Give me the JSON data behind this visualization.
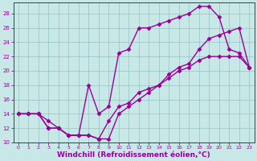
{
  "bg_color": "#c8e8e8",
  "grid_color": "#a0c8c8",
  "line_color": "#990099",
  "marker": "D",
  "markersize": 2.5,
  "linewidth": 1.0,
  "xlabel": "Windchill (Refroidissement éolien,°C)",
  "xlabel_fontsize": 6.5,
  "xlim_min": -0.5,
  "xlim_max": 23.5,
  "ylim_min": 10,
  "ylim_max": 29.5,
  "yticks": [
    10,
    12,
    14,
    16,
    18,
    20,
    22,
    24,
    26,
    28
  ],
  "xticks": [
    0,
    1,
    2,
    3,
    4,
    5,
    6,
    7,
    8,
    9,
    10,
    11,
    12,
    13,
    14,
    15,
    16,
    17,
    18,
    19,
    20,
    21,
    22,
    23
  ],
  "line1_x": [
    0,
    1,
    2,
    3,
    4,
    5,
    6,
    7,
    8,
    9,
    10,
    11,
    12,
    13,
    14,
    15,
    16,
    17,
    18,
    19,
    20,
    21,
    22,
    23
  ],
  "line1_y": [
    14,
    14,
    14,
    13,
    12,
    11,
    11,
    11,
    10.5,
    10.5,
    14,
    15,
    16,
    17,
    18,
    19,
    20,
    20.5,
    21.5,
    22,
    22,
    22,
    22,
    20.5
  ],
  "line2_x": [
    0,
    1,
    2,
    3,
    4,
    5,
    6,
    7,
    8,
    9,
    10,
    11,
    12,
    13,
    14,
    15,
    16,
    17,
    18,
    19,
    20,
    21,
    22,
    23
  ],
  "line2_y": [
    14,
    14,
    14,
    12,
    12,
    11,
    11,
    18,
    14,
    15,
    22.5,
    23,
    26,
    26,
    26.5,
    27,
    27.5,
    28,
    29,
    29,
    27.5,
    23,
    22.5,
    20.5
  ],
  "line3_x": [
    0,
    1,
    2,
    3,
    4,
    5,
    6,
    7,
    8,
    9,
    10,
    11,
    12,
    13,
    14,
    15,
    16,
    17,
    18,
    19,
    20,
    21,
    22,
    23
  ],
  "line3_y": [
    14,
    14,
    14,
    12,
    12,
    11,
    11,
    11,
    10.5,
    13,
    15,
    15.5,
    17,
    17.5,
    18,
    19.5,
    20.5,
    21,
    23,
    24.5,
    25,
    25.5,
    26,
    20.5
  ]
}
